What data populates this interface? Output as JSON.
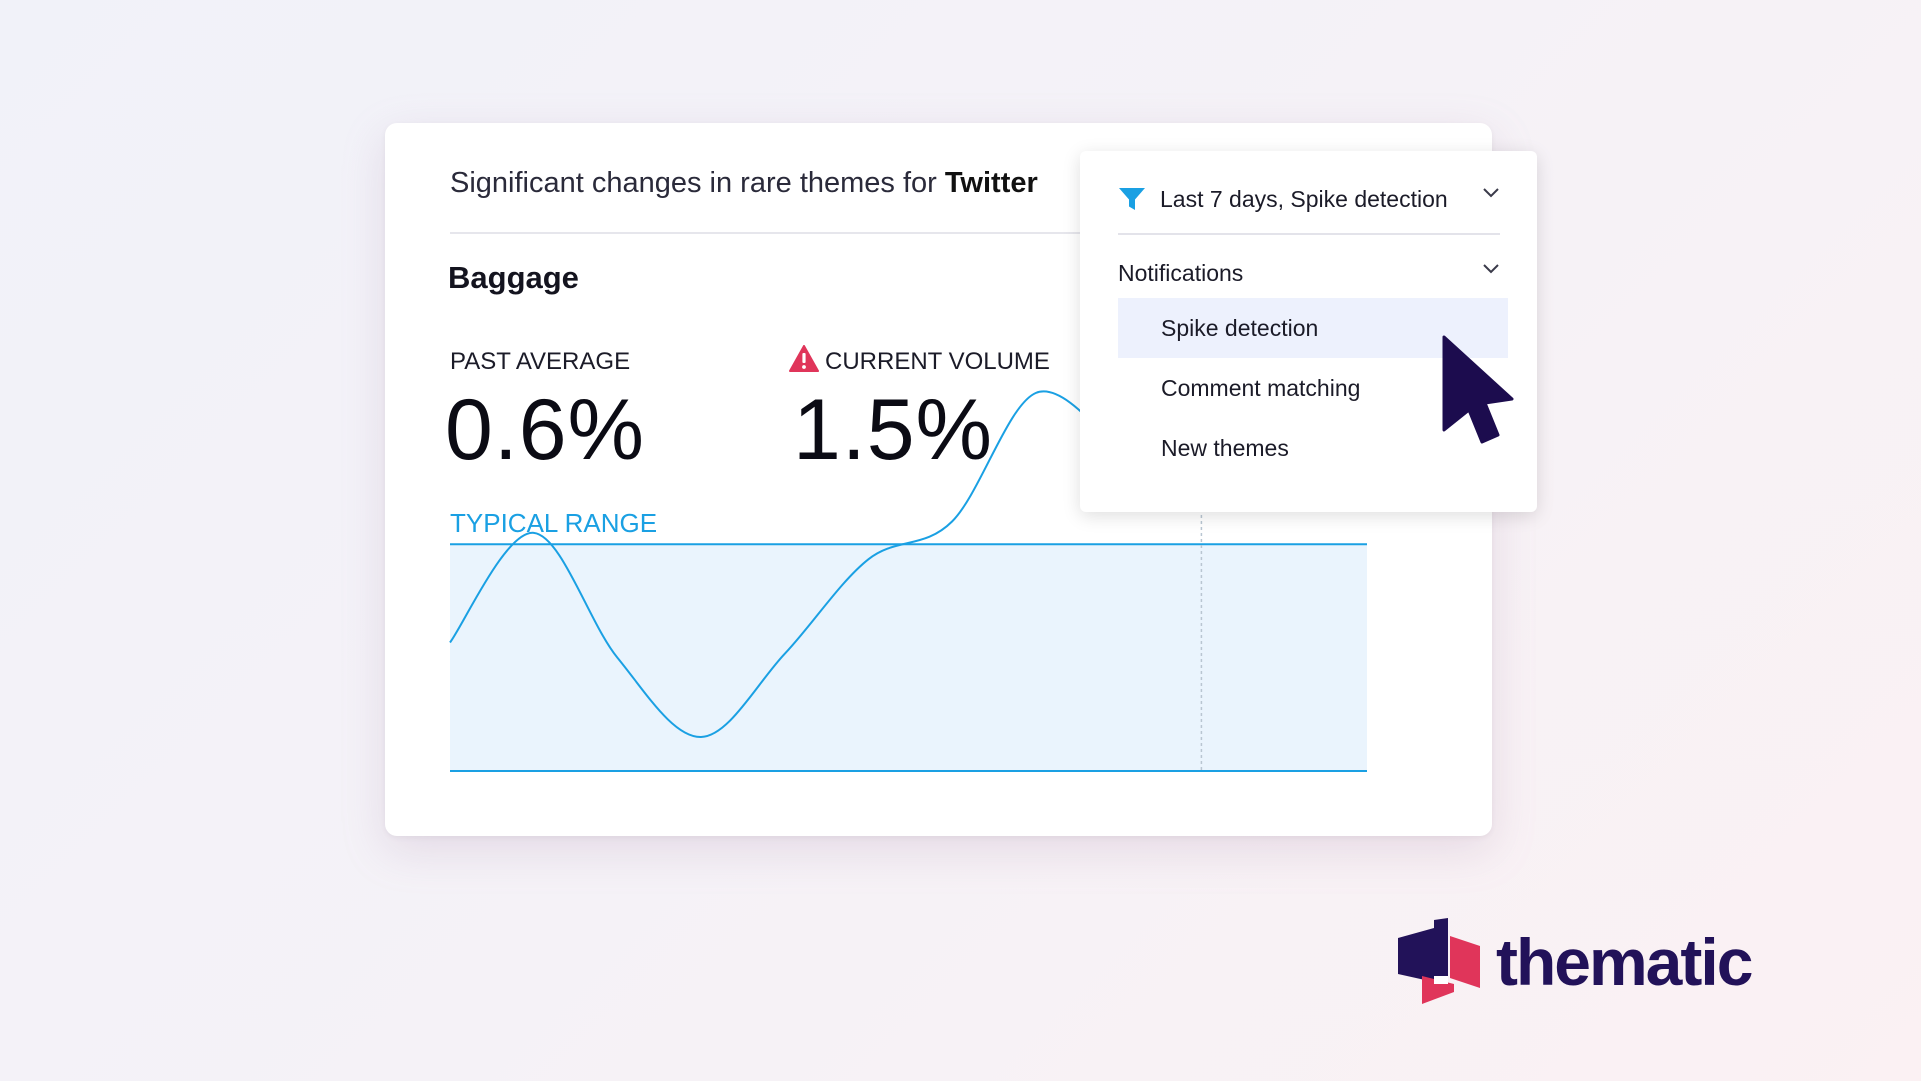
{
  "card": {
    "title_prefix": "Significant changes in rare themes for ",
    "title_source": "Twitter",
    "theme_name": "Baggage",
    "past_average": {
      "label": "PAST AVERAGE",
      "value": "0.6%"
    },
    "current_volume": {
      "label": "CURRENT VOLUME",
      "value": "1.5%",
      "icon": "warning-icon",
      "icon_color": "#e0355a"
    },
    "typical_range_label": "TYPICAL RANGE"
  },
  "chart_data": {
    "type": "line",
    "title": "",
    "xlabel": "",
    "ylabel": "",
    "band_label": "TYPICAL RANGE",
    "band_color": "#eaf4fd",
    "line_color": "#1aa0e3",
    "ylim": [
      0,
      1
    ],
    "band": [
      0,
      0.6
    ],
    "x": [
      0,
      1,
      2,
      3,
      4,
      5,
      6,
      7,
      8
    ],
    "series": [
      {
        "values": [
          0.34,
          0.63,
          0.3,
          0.09,
          0.31,
          0.56,
          0.66,
          1.0,
          0.85
        ]
      }
    ],
    "marker_x": 8
  },
  "dropdown": {
    "filter_icon": "filter-icon",
    "filter_color": "#1aa0e3",
    "header_label": "Last 7 days, Spike detection",
    "section_label": "Notifications",
    "items": [
      {
        "label": "Spike detection",
        "active": true
      },
      {
        "label": "Comment matching",
        "active": false
      },
      {
        "label": "New themes",
        "active": false
      }
    ]
  },
  "brand": {
    "name": "thematic",
    "logo_icon": "thematic-logo-icon",
    "color_primary": "#221259",
    "color_accent": "#e0355a"
  }
}
